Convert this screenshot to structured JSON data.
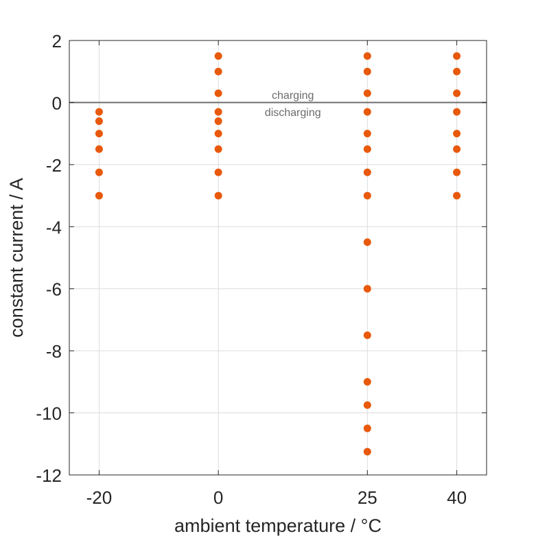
{
  "chart_data": {
    "type": "scatter",
    "title": "",
    "xlabel": "ambient temperature / °C",
    "ylabel": "constant current / A",
    "x_ticks": [
      -20,
      0,
      25,
      40
    ],
    "x_tick_labels": [
      "-20",
      "0",
      "25",
      "40"
    ],
    "xlim": [
      -25,
      45
    ],
    "y_ticks": [
      2,
      0,
      -2,
      -4,
      -6,
      -8,
      -10,
      -12
    ],
    "y_tick_labels": [
      "2",
      "0",
      "-2",
      "-4",
      "-6",
      "-8",
      "-10",
      "-12"
    ],
    "ylim": [
      -12,
      2
    ],
    "grid": true,
    "reference_line": {
      "y": 0,
      "color": "#6e6e6e"
    },
    "annotations": [
      {
        "text": "charging",
        "x": 12.5,
        "y": 0.25
      },
      {
        "text": "discharging",
        "x": 12.5,
        "y": -0.3
      }
    ],
    "marker_color": "#e8590c",
    "series": [
      {
        "name": "-20 °C",
        "x": -20,
        "values": [
          -0.3,
          -0.6,
          -1.0,
          -1.5,
          -2.25,
          -3.0
        ]
      },
      {
        "name": "0 °C",
        "x": 0,
        "values": [
          1.5,
          1.0,
          0.3,
          -0.3,
          -0.6,
          -1.0,
          -1.5,
          -2.25,
          -3.0
        ]
      },
      {
        "name": "25 °C",
        "x": 25,
        "values": [
          1.5,
          1.0,
          0.3,
          -0.3,
          -1.0,
          -1.5,
          -2.25,
          -3.0,
          -4.5,
          -6.0,
          -7.5,
          -9.0,
          -9.75,
          -10.5,
          -11.25
        ]
      },
      {
        "name": "40 °C",
        "x": 40,
        "values": [
          1.5,
          1.0,
          0.3,
          -0.3,
          -1.0,
          -1.5,
          -2.25,
          -3.0
        ]
      }
    ]
  }
}
